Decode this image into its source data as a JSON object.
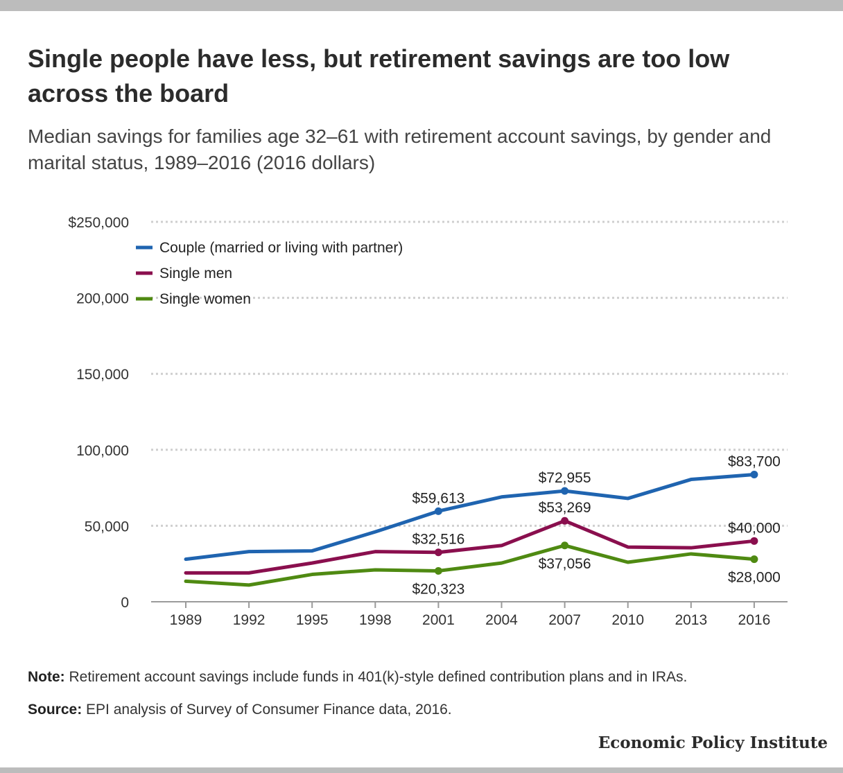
{
  "title": "Single people have less, but retirement savings are too low across the board",
  "subtitle": "Median savings for families age 32–61 with retirement account savings, by gender and marital status, 1989–2016 (2016 dollars)",
  "note_label": "Note:",
  "note_text": " Retirement account savings include funds in 401(k)-style defined contribution plans and in IRAs.",
  "source_label": "Source:",
  "source_text": " EPI analysis of Survey of Consumer Finance data, 2016.",
  "brand": "Economic Policy Institute",
  "chart_data": {
    "type": "line",
    "categories": [
      "1989",
      "1992",
      "1995",
      "1998",
      "2001",
      "2004",
      "2007",
      "2010",
      "2013",
      "2016"
    ],
    "ylim": [
      0,
      250000
    ],
    "yticks": [
      0,
      50000,
      100000,
      150000,
      200000,
      250000
    ],
    "ytick_labels": [
      "0",
      "50,000",
      "100,000",
      "150,000",
      "200,000",
      "$250,000"
    ],
    "grid": true,
    "legend_position": "top-left",
    "series": [
      {
        "name": "Couple (married or living with partner)",
        "color": "#1f64b0",
        "values": [
          28000,
          33000,
          33500,
          46000,
          59613,
          69000,
          72955,
          68000,
          80500,
          83700
        ],
        "markers": [
          {
            "index": 4,
            "label": "$59,613",
            "position": "above"
          },
          {
            "index": 6,
            "label": "$72,955",
            "position": "above"
          },
          {
            "index": 9,
            "label": "$83,700",
            "position": "above"
          }
        ]
      },
      {
        "name": "Single men",
        "color": "#8a0f4e",
        "values": [
          19000,
          19000,
          25500,
          33000,
          32516,
          37000,
          53269,
          36000,
          35500,
          40000
        ],
        "markers": [
          {
            "index": 4,
            "label": "$32,516",
            "position": "above"
          },
          {
            "index": 6,
            "label": "$53,269",
            "position": "above"
          },
          {
            "index": 9,
            "label": "$40,000",
            "position": "above"
          }
        ]
      },
      {
        "name": "Single women",
        "color": "#4f8a12",
        "values": [
          13500,
          11000,
          18000,
          21000,
          20323,
          25500,
          37056,
          26000,
          31500,
          28000
        ],
        "markers": [
          {
            "index": 4,
            "label": "$20,323",
            "position": "below"
          },
          {
            "index": 6,
            "label": "$37,056",
            "position": "below"
          },
          {
            "index": 9,
            "label": "$28,000",
            "position": "below"
          }
        ]
      }
    ]
  }
}
